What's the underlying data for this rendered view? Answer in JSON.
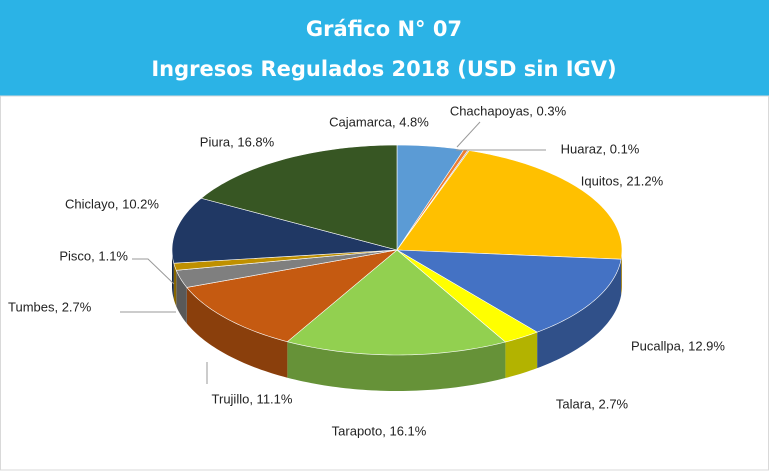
{
  "chart_data": {
    "type": "pie",
    "title": "Gráfico N° 07",
    "subtitle": "Ingresos Regulados  2018 (USD sin IGV)",
    "values": [
      4.8,
      0.3,
      0.1,
      21.2,
      12.9,
      2.7,
      16.1,
      11.1,
      2.7,
      1.1,
      10.2,
      16.8
    ],
    "value_labels": [
      "Cajamarca, 4.8%",
      "Chachapoyas, 0.3%",
      "Huaraz, 0.1%",
      "Iquitos, 21.2%",
      "Pucallpa, 12.9%",
      "Talara, 2.7%",
      "Tarapoto, 16.1%",
      "Trujillo, 11.1%",
      "Tumbes, 2.7%",
      "Pisco, 1.1%",
      "Chiclayo, 10.2%",
      "Piura, 16.8%"
    ],
    "colors": [
      "#5b9bd5",
      "#ed7d31",
      "#a5a5a5",
      "#ffc000",
      "#4472c4",
      "#ffff00",
      "#92d050",
      "#c55a11",
      "#7f7f7f",
      "#bf9000",
      "#203864",
      "#375623"
    ]
  }
}
